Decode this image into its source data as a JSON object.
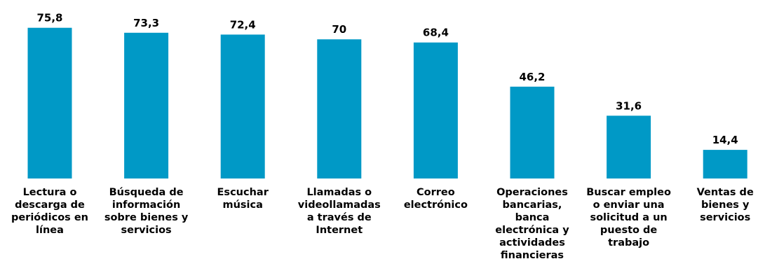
{
  "chart_data": {
    "type": "bar",
    "categories": [
      "Lectura o\ndescarga de\nperiódicos en\nlínea",
      "Búsqueda de\ninformación\nsobre bienes y\nservicios",
      "Escuchar\nmúsica",
      "Llamadas o\nvideollamadas\na través de\nInternet",
      "Correo\nelectrónico",
      "Operaciones\nbancarias,\nbanca\nelectrónica y\nactividades\nfinancieras",
      "Buscar empleo\no enviar una\nsolicitud a un\npuesto de\ntrabajo",
      "Ventas de\nbienes y\nservicios"
    ],
    "values": [
      75.8,
      73.3,
      72.4,
      70,
      68.4,
      46.2,
      31.6,
      14.4
    ],
    "value_labels": [
      "75,8",
      "73,3",
      "72,4",
      "70",
      "68,4",
      "46,2",
      "31,6",
      "14,4"
    ],
    "ylim": [
      0,
      100
    ],
    "grid": false,
    "legend": "none",
    "bar_color": "#0099C6"
  }
}
